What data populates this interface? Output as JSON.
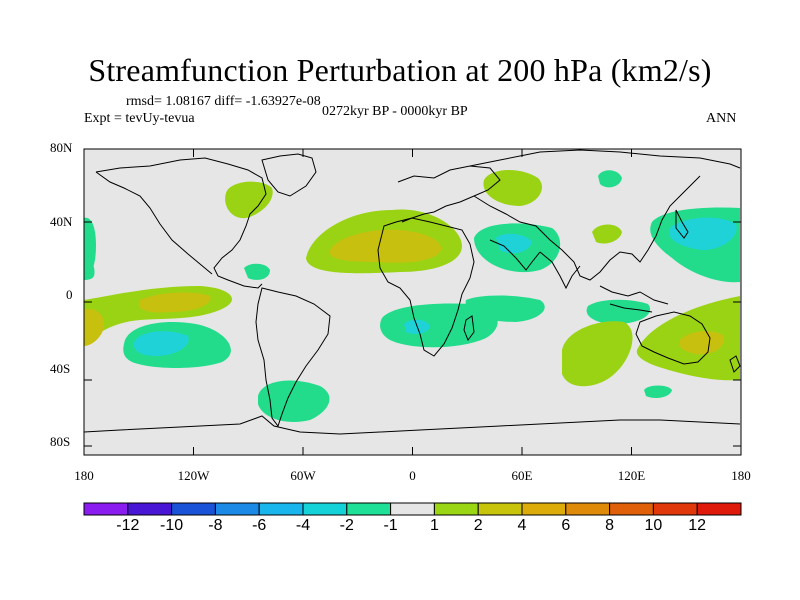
{
  "title": "Streamfunction Perturbation at 200 hPa (km2/s)",
  "stats": "rmsd= 1.08167 diff= -1.63927e-08",
  "experiment": "Expt = tevUy-tevua",
  "period": "0272kyr BP - 0000kyr BP",
  "season": "ANN",
  "axes": {
    "y_ticks": [
      "80N",
      "40N",
      "0",
      "40S",
      "80S"
    ],
    "x_ticks": [
      "180",
      "120W",
      "60W",
      "0",
      "60E",
      "120E",
      "180"
    ]
  },
  "colors": {
    "background_land": "#ffffff",
    "neutral": "#e6e6e6",
    "coastline": "#000000",
    "pos_2": "#9ad314",
    "pos_4": "#c8c00e",
    "neg_2": "#22dc8c",
    "neg_4": "#1ed2d8"
  },
  "colorbar": {
    "colors": [
      "#8a1cf0",
      "#4a16d6",
      "#1a52d8",
      "#1a8ae6",
      "#18b6ec",
      "#14d2d8",
      "#1ee096",
      "#e6e6e6",
      "#9ad614",
      "#c8c40c",
      "#dcac0a",
      "#e08a0a",
      "#e0600a",
      "#e0380a",
      "#e01a0a"
    ],
    "labels": [
      "-12",
      "-10",
      "-8",
      "-6",
      "-4",
      "-2",
      "-1",
      "1",
      "2",
      "4",
      "6",
      "8",
      "10",
      "12"
    ]
  }
}
